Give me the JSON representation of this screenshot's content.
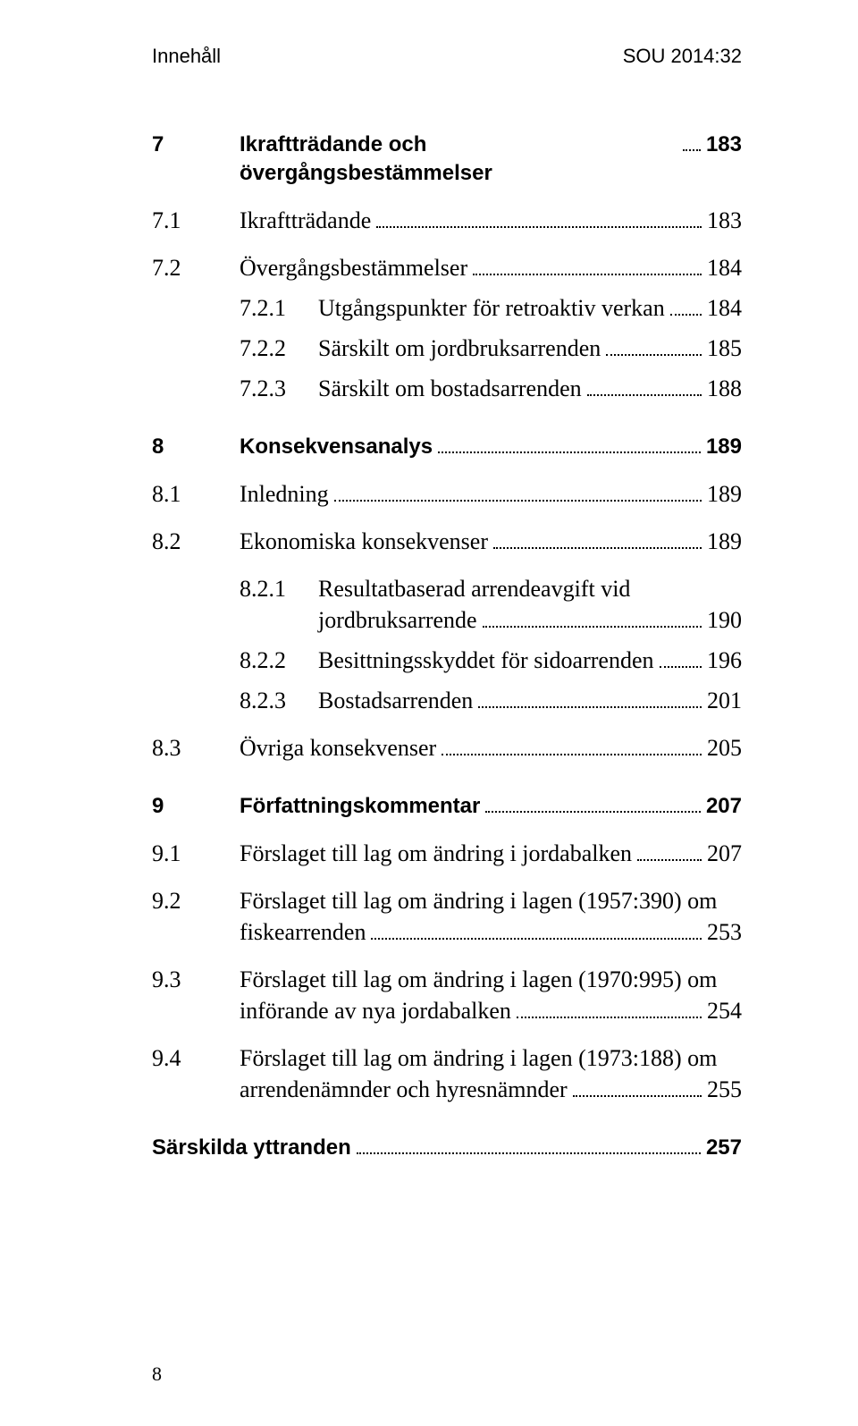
{
  "header": {
    "left": "Innehåll",
    "right": "SOU 2014:32"
  },
  "footer": {
    "page": "8"
  },
  "toc": {
    "ch7": {
      "num": "7",
      "title": "Ikraftträdande och övergångsbestämmelser",
      "pg": "183"
    },
    "s71": {
      "num": "7.1",
      "title": "Ikraftträdande",
      "pg": "183"
    },
    "s72": {
      "num": "7.2",
      "title": "Övergångsbestämmelser",
      "pg": "184"
    },
    "s721": {
      "num": "7.2.1",
      "title": "Utgångspunkter för retroaktiv verkan",
      "pg": "184"
    },
    "s722": {
      "num": "7.2.2",
      "title": "Särskilt om jordbruksarrenden",
      "pg": "185"
    },
    "s723": {
      "num": "7.2.3",
      "title": "Särskilt om bostadsarrenden",
      "pg": "188"
    },
    "ch8": {
      "num": "8",
      "title": "Konsekvensanalys",
      "pg": "189"
    },
    "s81": {
      "num": "8.1",
      "title": "Inledning",
      "pg": "189"
    },
    "s82": {
      "num": "8.2",
      "title": "Ekonomiska konsekvenser",
      "pg": "189"
    },
    "s821": {
      "num": "8.2.1",
      "line1": "Resultatbaserad arrendeavgift vid",
      "line2": "jordbruksarrende",
      "pg": "190"
    },
    "s822": {
      "num": "8.2.2",
      "title": "Besittningsskyddet för sidoarrenden",
      "pg": "196"
    },
    "s823": {
      "num": "8.2.3",
      "title": "Bostadsarrenden",
      "pg": "201"
    },
    "s83": {
      "num": "8.3",
      "title": "Övriga konsekvenser",
      "pg": "205"
    },
    "ch9": {
      "num": "9",
      "title": "Författningskommentar",
      "pg": "207"
    },
    "s91": {
      "num": "9.1",
      "title": "Förslaget till lag om ändring i jordabalken",
      "pg": "207"
    },
    "s92": {
      "num": "9.2",
      "line1": "Förslaget till lag om ändring i lagen (1957:390) om",
      "line2": "fiskearrenden",
      "pg": "253"
    },
    "s93": {
      "num": "9.3",
      "line1": "Förslaget till lag om ändring i lagen (1970:995) om",
      "line2": "införande av nya jordabalken",
      "pg": "254"
    },
    "s94": {
      "num": "9.4",
      "line1": "Förslaget till lag om ändring i lagen (1973:188) om",
      "line2": "arrendenämnder och hyresnämnder",
      "pg": "255"
    },
    "yttr": {
      "num": "",
      "title": "Särskilda yttranden",
      "pg": "257"
    }
  }
}
